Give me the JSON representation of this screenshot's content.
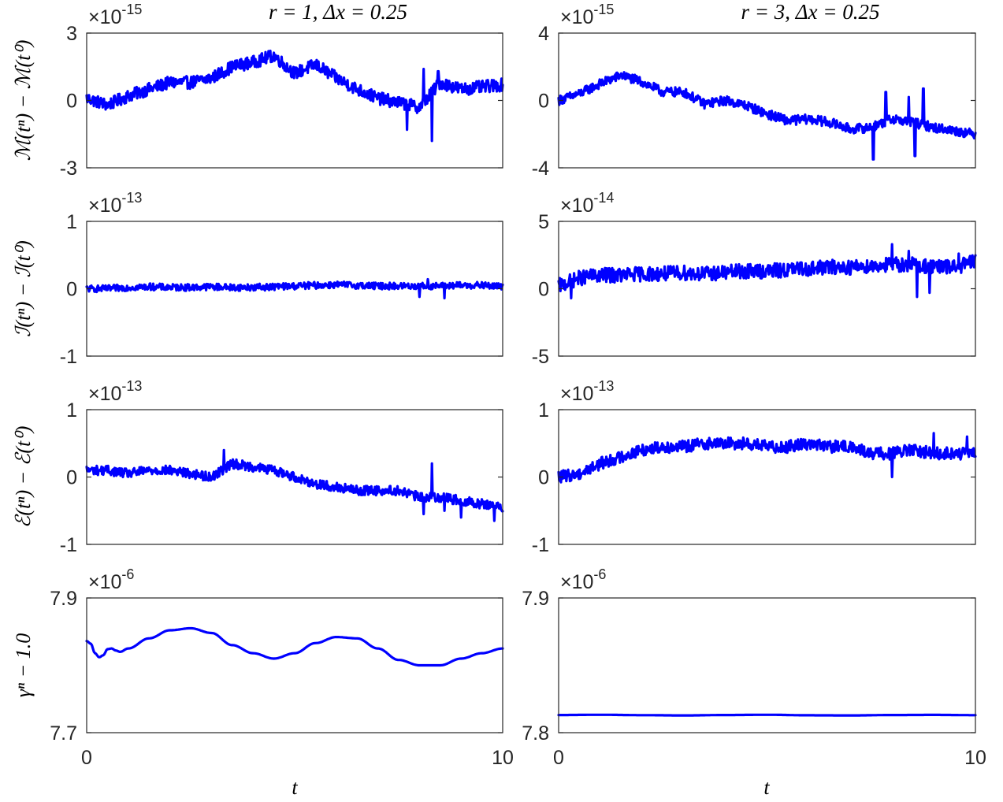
{
  "figure": {
    "xlabel": "t",
    "line_color": "#0000ff"
  },
  "chart_data": [
    {
      "id": "p11",
      "type": "line",
      "title": "r = 1, Δx = 0.25",
      "ylabel": "ℳ(tⁿ) − ℳ(t⁰)",
      "exponent": "-15",
      "xlim": [
        0,
        10
      ],
      "ylim": [
        -3,
        3
      ],
      "xticks": [],
      "yticks": [
        "-3",
        "0",
        "3"
      ],
      "x": [
        0,
        0.5,
        1,
        1.5,
        2,
        2.5,
        3,
        3.5,
        4,
        4.5,
        5,
        5.5,
        6,
        6.5,
        7,
        7.5,
        8,
        8.5,
        9,
        9.5,
        10
      ],
      "y": [
        0.1,
        -0.2,
        0.2,
        0.5,
        0.8,
        0.8,
        1.0,
        1.5,
        1.7,
        2.0,
        1.2,
        1.6,
        1.0,
        0.5,
        0.1,
        -0.1,
        -0.3,
        0.8,
        0.5,
        0.6,
        0.7
      ],
      "noise": 0.28,
      "spikes": [
        [
          7.7,
          -1.3
        ],
        [
          8.1,
          1.4
        ],
        [
          8.3,
          -1.8
        ],
        [
          8.45,
          1.3
        ]
      ]
    },
    {
      "id": "p12",
      "type": "line",
      "title": "r = 3, Δx = 0.25",
      "ylabel": "",
      "exponent": "-15",
      "xlim": [
        0,
        10
      ],
      "ylim": [
        -4,
        4
      ],
      "xticks": [],
      "yticks": [
        "-4",
        "0",
        "4"
      ],
      "x": [
        0,
        0.5,
        1,
        1.5,
        2,
        2.5,
        3,
        3.5,
        4,
        4.5,
        5,
        5.5,
        6,
        6.5,
        7,
        7.5,
        8,
        8.5,
        9,
        9.5,
        10
      ],
      "y": [
        0.0,
        0.4,
        1.0,
        1.5,
        1.1,
        0.5,
        0.5,
        -0.2,
        0.0,
        -0.3,
        -0.8,
        -1.2,
        -1.1,
        -1.3,
        -1.7,
        -1.6,
        -1.1,
        -1.3,
        -1.6,
        -1.8,
        -2.0
      ],
      "noise": 0.28,
      "spikes": [
        [
          7.55,
          -3.5
        ],
        [
          7.85,
          0.5
        ],
        [
          8.1,
          -0.9
        ],
        [
          8.4,
          0.2
        ],
        [
          8.55,
          -3.3
        ],
        [
          8.75,
          0.7
        ]
      ]
    },
    {
      "id": "p21",
      "type": "line",
      "title": "",
      "ylabel": "ℐ(tⁿ) − ℐ(t⁰)",
      "exponent": "-13",
      "xlim": [
        0,
        10
      ],
      "ylim": [
        -1,
        1
      ],
      "xticks": [],
      "yticks": [
        "-1",
        "0",
        "1"
      ],
      "x": [
        0,
        0.5,
        1,
        1.5,
        2,
        2.5,
        3,
        3.5,
        4,
        4.5,
        5,
        5.5,
        6,
        6.5,
        7,
        7.5,
        8,
        8.5,
        9,
        9.5,
        10
      ],
      "y": [
        0.0,
        0.0,
        0.02,
        0.03,
        0.02,
        0.02,
        0.03,
        0.02,
        0.02,
        0.03,
        0.04,
        0.05,
        0.06,
        0.05,
        0.04,
        0.04,
        0.04,
        0.04,
        0.05,
        0.05,
        0.03
      ],
      "noise": 0.05,
      "spikes": [
        [
          8.0,
          -0.12
        ],
        [
          8.2,
          0.14
        ],
        [
          8.6,
          -0.14
        ]
      ]
    },
    {
      "id": "p22",
      "type": "line",
      "title": "",
      "ylabel": "",
      "exponent": "-14",
      "xlim": [
        0,
        10
      ],
      "ylim": [
        -5,
        5
      ],
      "xticks": [],
      "yticks": [
        "-5",
        "0",
        "5"
      ],
      "x": [
        0,
        0.5,
        1,
        1.5,
        2,
        2.5,
        3,
        3.5,
        4,
        4.5,
        5,
        5.5,
        6,
        6.5,
        7,
        7.5,
        8,
        8.5,
        9,
        9.5,
        10
      ],
      "y": [
        0.2,
        0.8,
        1.0,
        1.0,
        1.1,
        1.1,
        1.2,
        1.1,
        1.2,
        1.3,
        1.3,
        1.4,
        1.5,
        1.6,
        1.6,
        1.7,
        1.8,
        1.8,
        1.6,
        1.6,
        2.0
      ],
      "noise": 0.55,
      "spikes": [
        [
          0.3,
          -0.7
        ],
        [
          8.0,
          3.3
        ],
        [
          8.4,
          2.8
        ],
        [
          8.6,
          -0.6
        ],
        [
          8.9,
          -0.3
        ],
        [
          9.6,
          2.6
        ]
      ]
    },
    {
      "id": "p31",
      "type": "line",
      "title": "",
      "ylabel": "ℰ(tⁿ) − ℰ(t⁰)",
      "exponent": "-13",
      "xlim": [
        0,
        10
      ],
      "ylim": [
        -1,
        1
      ],
      "xticks": [],
      "yticks": [
        "-1",
        "0",
        "1"
      ],
      "x": [
        0,
        0.5,
        1,
        1.5,
        2,
        2.5,
        3,
        3.5,
        4,
        4.5,
        5,
        5.5,
        6,
        6.5,
        7,
        7.5,
        8,
        8.5,
        9,
        9.5,
        10
      ],
      "y": [
        0.1,
        0.1,
        0.05,
        0.1,
        0.1,
        0.05,
        0.0,
        0.2,
        0.15,
        0.1,
        0.0,
        -0.1,
        -0.15,
        -0.2,
        -0.2,
        -0.2,
        -0.3,
        -0.3,
        -0.35,
        -0.4,
        -0.45
      ],
      "noise": 0.07,
      "spikes": [
        [
          3.3,
          0.4
        ],
        [
          8.1,
          -0.55
        ],
        [
          8.3,
          0.2
        ],
        [
          8.6,
          -0.5
        ],
        [
          9.0,
          -0.6
        ],
        [
          9.8,
          -0.65
        ]
      ]
    },
    {
      "id": "p32",
      "type": "line",
      "title": "",
      "ylabel": "",
      "exponent": "-13",
      "xlim": [
        0,
        10
      ],
      "ylim": [
        -1,
        1
      ],
      "xticks": [],
      "yticks": [
        "-1",
        "0",
        "1"
      ],
      "x": [
        0,
        0.5,
        1,
        1.5,
        2,
        2.5,
        3,
        3.5,
        4,
        4.5,
        5,
        5.5,
        6,
        6.5,
        7,
        7.5,
        8,
        8.5,
        9,
        9.5,
        10
      ],
      "y": [
        0.0,
        0.05,
        0.2,
        0.3,
        0.4,
        0.45,
        0.45,
        0.5,
        0.5,
        0.5,
        0.45,
        0.45,
        0.5,
        0.45,
        0.45,
        0.35,
        0.35,
        0.4,
        0.35,
        0.35,
        0.35
      ],
      "noise": 0.09,
      "spikes": [
        [
          8.0,
          0.0
        ],
        [
          9.0,
          0.65
        ],
        [
          9.8,
          0.6
        ]
      ]
    },
    {
      "id": "p41",
      "type": "line",
      "title": "",
      "ylabel": "γⁿ − 1.0",
      "exponent": "-6",
      "xlim": [
        0,
        10
      ],
      "ylim": [
        7.7,
        7.9
      ],
      "xticks": [
        "0",
        "10"
      ],
      "yticks": [
        "7.7",
        "7.9"
      ],
      "x": [
        0,
        0.1,
        0.2,
        0.3,
        0.4,
        0.5,
        0.6,
        0.7,
        0.8,
        1,
        1.5,
        2,
        2.5,
        3,
        3.5,
        4,
        4.5,
        5,
        5.5,
        6,
        6.5,
        7,
        7.5,
        8,
        8.5,
        9,
        9.5,
        10
      ],
      "y": [
        7.836,
        7.832,
        7.818,
        7.812,
        7.815,
        7.824,
        7.825,
        7.822,
        7.82,
        7.825,
        7.84,
        7.852,
        7.855,
        7.848,
        7.83,
        7.818,
        7.81,
        7.818,
        7.833,
        7.842,
        7.84,
        7.825,
        7.808,
        7.8,
        7.8,
        7.81,
        7.818,
        7.825
      ],
      "noise": 0,
      "spikes": []
    },
    {
      "id": "p42",
      "type": "line",
      "title": "",
      "ylabel": "",
      "exponent": "-6",
      "xlim": [
        0,
        10
      ],
      "ylim": [
        7.8,
        7.9
      ],
      "xticks": [
        "0",
        "10"
      ],
      "yticks": [
        "7.8",
        "7.9"
      ],
      "x": [
        0,
        1,
        2,
        3,
        4,
        5,
        6,
        7,
        8,
        9,
        10
      ],
      "y": [
        7.8131,
        7.8133,
        7.813,
        7.8128,
        7.8131,
        7.8133,
        7.8129,
        7.8128,
        7.8131,
        7.8132,
        7.813
      ],
      "noise": 0,
      "spikes": []
    }
  ]
}
